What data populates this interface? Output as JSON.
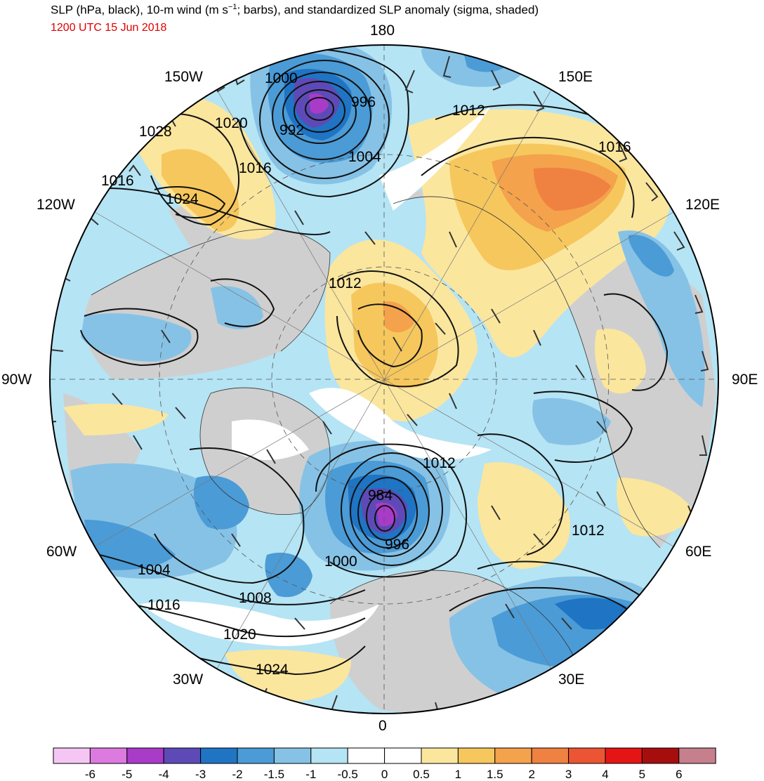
{
  "header": {
    "title_a": "SLP (hPa, black), 10-m wind (m s",
    "title_sup": "−1",
    "title_b": "; barbs), and standardized SLP anomaly (sigma, shaded)",
    "valid_time": "1200 UTC 15 Jun 2018",
    "time_color": "#e00000"
  },
  "map": {
    "projection": "north-polar-stereographic",
    "longitude_labels": [
      {
        "text": "180",
        "lon": 180
      },
      {
        "text": "150E",
        "lon": 150
      },
      {
        "text": "120E",
        "lon": 120
      },
      {
        "text": "90E",
        "lon": 90
      },
      {
        "text": "60E",
        "lon": 60
      },
      {
        "text": "30E",
        "lon": 30
      },
      {
        "text": "0",
        "lon": 0
      },
      {
        "text": "30W",
        "lon": -30
      },
      {
        "text": "60W",
        "lon": -60
      },
      {
        "text": "90W",
        "lon": -90
      },
      {
        "text": "120W",
        "lon": -120
      },
      {
        "text": "150W",
        "lon": -150
      }
    ],
    "slp_contour_labels": [
      "1000",
      "996",
      "992",
      "1004",
      "1012",
      "1016",
      "1020",
      "1028",
      "1016",
      "1024",
      "1016",
      "1012",
      "1012",
      "984",
      "996",
      "1000",
      "1012",
      "1004",
      "1008",
      "1016",
      "1020",
      "1024"
    ],
    "pressure_centers": [
      {
        "type": "low",
        "label": "992",
        "near_lon": -160
      },
      {
        "type": "low",
        "label": "984",
        "near_lon": 0
      }
    ],
    "land_color": "#cfcfcf"
  },
  "colorbar": {
    "tick_labels": [
      "-6",
      "-5",
      "-4",
      "-3",
      "-2",
      "-1.5",
      "-1",
      "-0.5",
      "0",
      "0.5",
      "1",
      "1.5",
      "2",
      "3",
      "4",
      "5",
      "6"
    ],
    "colors": [
      "#f5c6f3",
      "#dd7ae0",
      "#a93bc9",
      "#5e4ab7",
      "#1f74c4",
      "#4b9bd6",
      "#86c2e6",
      "#b5e4f4",
      "#ffffff",
      "#ffffff",
      "#fbe69e",
      "#f6c75d",
      "#f4a24c",
      "#ef8141",
      "#ec5533",
      "#e51515",
      "#a60e0e",
      "#c67f8d"
    ]
  }
}
